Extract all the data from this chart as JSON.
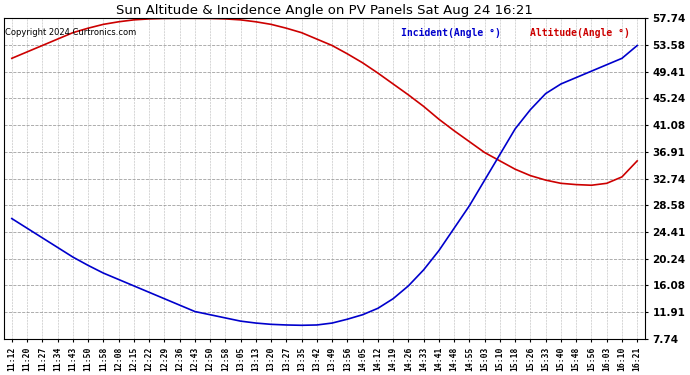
{
  "title": "Sun Altitude & Incidence Angle on PV Panels Sat Aug 24 16:21",
  "copyright": "Copyright 2024 Curtronics.com",
  "legend_incident": "Incident(Angle °)",
  "legend_altitude": "Altitude(Angle °)",
  "incident_color": "#0000cc",
  "altitude_color": "#cc0000",
  "background_color": "#ffffff",
  "grid_color": "#888888",
  "yticks": [
    7.74,
    11.91,
    16.08,
    20.24,
    24.41,
    28.58,
    32.74,
    36.91,
    41.08,
    45.24,
    49.41,
    53.58,
    57.74
  ],
  "ymin": 7.74,
  "ymax": 57.74,
  "x_labels": [
    "11:12",
    "11:20",
    "11:27",
    "11:34",
    "11:43",
    "11:50",
    "11:58",
    "12:08",
    "12:15",
    "12:22",
    "12:29",
    "12:36",
    "12:43",
    "12:50",
    "12:58",
    "13:05",
    "13:13",
    "13:20",
    "13:27",
    "13:35",
    "13:42",
    "13:49",
    "13:56",
    "14:05",
    "14:12",
    "14:19",
    "14:26",
    "14:33",
    "14:41",
    "14:48",
    "14:55",
    "15:03",
    "15:10",
    "15:18",
    "15:26",
    "15:33",
    "15:40",
    "15:48",
    "15:56",
    "16:03",
    "16:10",
    "16:21"
  ],
  "altitude_data": [
    51.5,
    52.5,
    53.5,
    54.5,
    55.5,
    56.2,
    56.8,
    57.2,
    57.5,
    57.65,
    57.72,
    57.74,
    57.74,
    57.72,
    57.65,
    57.5,
    57.2,
    56.8,
    56.2,
    55.5,
    54.5,
    53.5,
    52.2,
    50.8,
    49.2,
    47.5,
    45.8,
    44.0,
    42.0,
    40.2,
    38.5,
    36.8,
    35.5,
    34.2,
    33.2,
    32.5,
    32.0,
    31.8,
    31.7,
    32.0,
    33.0,
    35.5
  ],
  "incident_data": [
    26.5,
    25.0,
    23.5,
    22.0,
    20.5,
    19.2,
    18.0,
    17.0,
    16.0,
    15.0,
    14.0,
    13.0,
    12.0,
    11.5,
    11.0,
    10.5,
    10.2,
    10.0,
    9.9,
    9.85,
    9.9,
    10.2,
    10.8,
    11.5,
    12.5,
    14.0,
    16.0,
    18.5,
    21.5,
    25.0,
    28.5,
    32.5,
    36.5,
    40.5,
    43.5,
    46.0,
    47.5,
    48.5,
    49.5,
    50.5,
    51.5,
    53.5
  ]
}
